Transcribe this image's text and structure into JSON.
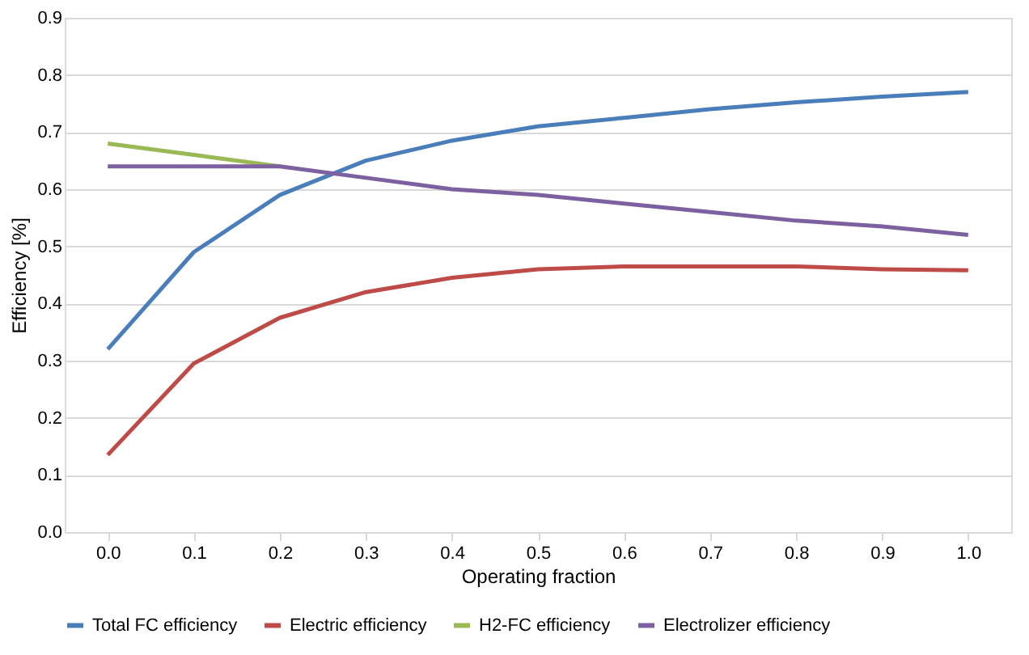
{
  "chart_data": {
    "type": "line",
    "xlabel": "Operating fraction",
    "ylabel": "Efficiency [%]",
    "categories": [
      "0.0",
      "0.1",
      "0.2",
      "0.3",
      "0.4",
      "0.5",
      "0.6",
      "0.7",
      "0.8",
      "0.9",
      "1.0"
    ],
    "series": [
      {
        "name": "Total FC efficiency",
        "color": "#4a7ebb",
        "values": [
          0.32,
          0.49,
          0.59,
          0.65,
          0.685,
          0.71,
          0.725,
          0.74,
          0.752,
          0.762,
          0.77
        ]
      },
      {
        "name": "Electric efficiency",
        "color": "#be4b48",
        "values": [
          0.135,
          0.295,
          0.375,
          0.42,
          0.445,
          0.46,
          0.465,
          0.465,
          0.465,
          0.46,
          0.458
        ]
      },
      {
        "name": "H2-FC efficiency",
        "color": "#98b954",
        "values": [
          0.68,
          0.66,
          0.64,
          null,
          null,
          null,
          null,
          null,
          null,
          null,
          null
        ]
      },
      {
        "name": "Electrolizer efficiency",
        "color": "#7d60a0",
        "values": [
          0.64,
          0.64,
          0.64,
          0.62,
          0.6,
          0.59,
          0.575,
          0.56,
          0.545,
          0.535,
          0.52
        ]
      }
    ],
    "ylim": [
      0,
      0.9
    ],
    "yticks": [
      {
        "value": 0,
        "label": "0.0"
      },
      0.1,
      0.2,
      0.3,
      0.4,
      0.5,
      0.6,
      0.7,
      0.8,
      0.9
    ],
    "grid": "y",
    "legend": "bottom",
    "marker": "none",
    "line_style": "solid"
  }
}
